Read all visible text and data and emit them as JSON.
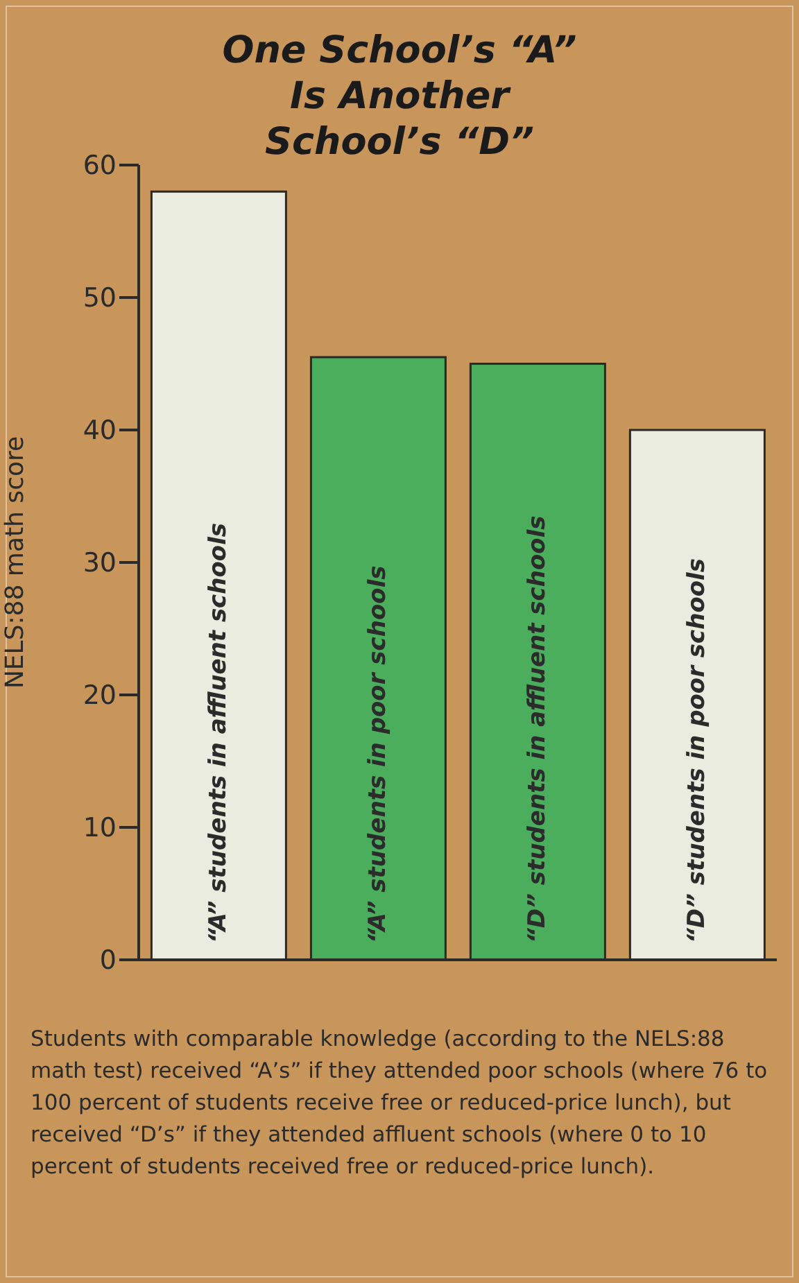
{
  "chart_data": {
    "type": "bar",
    "title": "One School’s “A” Is Another School’s “D”",
    "ylabel": "NELS:88 math score",
    "categories": [
      "“A” students in affluent schools",
      "“A” students in poor schools",
      "“D” students in affluent schools",
      "“D” students in poor schools"
    ],
    "values": [
      58,
      45.5,
      45,
      40
    ],
    "colors": [
      "#e9ecdf",
      "#4aae5c",
      "#4aae5c",
      "#e9ecdf"
    ],
    "ylim": [
      0,
      60
    ],
    "yticks": [
      0,
      10,
      20,
      30,
      40,
      50,
      60
    ],
    "grid": false,
    "legend": false,
    "annotations": [
      "Students with comparable knowledge (according to the NELS:88 math test) received “A’s” if they attended poor schools (where 76 to 100 percent of students receive free or reduced-price lunch), but received “D’s” if they attended affluent schools (where 0 to 10 percent of students received free or reduced-price lunch)."
    ]
  }
}
